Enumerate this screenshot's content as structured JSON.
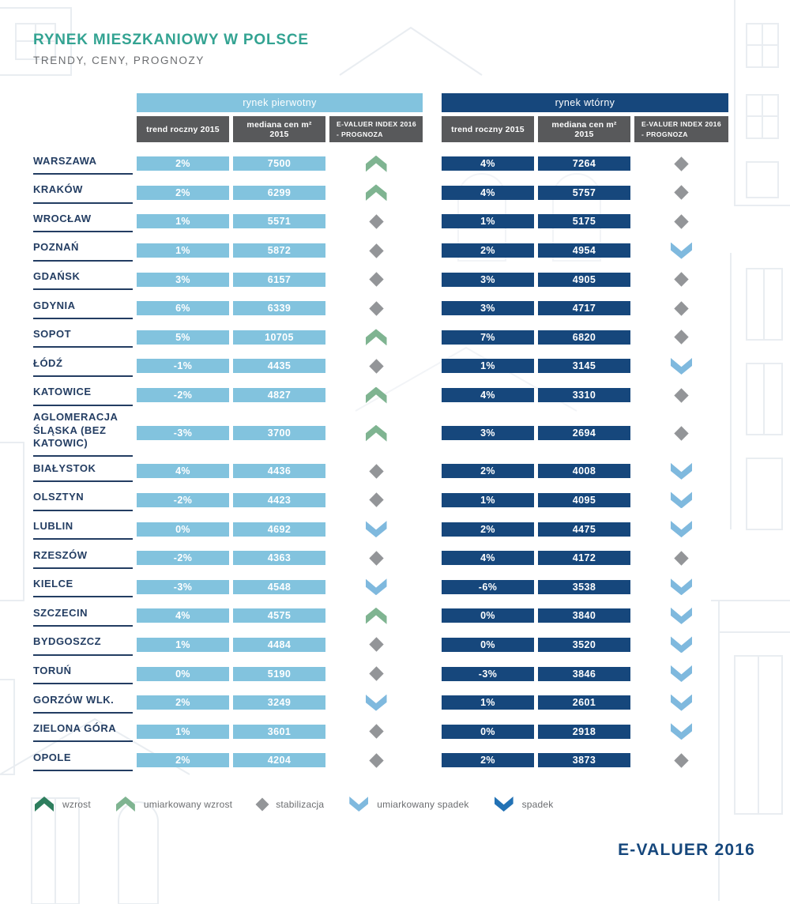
{
  "header": {
    "title": "RYNEK MIESZKANIOWY W POLSCE",
    "subtitle": "TRENDY, CENY, PROGNOZY"
  },
  "chart_data": {
    "type": "table",
    "title": "RYNEK MIESZKANIOWY W POLSCE",
    "subtitle": "TRENDY, CENY, PROGNOZY",
    "groups": [
      {
        "label": "rynek pierwotny"
      },
      {
        "label": "rynek wtórny"
      }
    ],
    "columns": [
      {
        "line1": "trend roczny 2015"
      },
      {
        "line1": "mediana cen m² 2015"
      },
      {
        "line1": "E-VALUER INDEX 2016",
        "line2": "- PROGNOZA"
      }
    ],
    "rows": [
      {
        "city": "WARSZAWA",
        "p_trend": "2%",
        "p_median": "7500",
        "p_icon": "moderate-up",
        "s_trend": "4%",
        "s_median": "7264",
        "s_icon": "stable"
      },
      {
        "city": "KRAKÓW",
        "p_trend": "2%",
        "p_median": "6299",
        "p_icon": "moderate-up",
        "s_trend": "4%",
        "s_median": "5757",
        "s_icon": "stable"
      },
      {
        "city": "WROCŁAW",
        "p_trend": "1%",
        "p_median": "5571",
        "p_icon": "stable",
        "s_trend": "1%",
        "s_median": "5175",
        "s_icon": "stable"
      },
      {
        "city": "POZNAŃ",
        "p_trend": "1%",
        "p_median": "5872",
        "p_icon": "stable",
        "s_trend": "2%",
        "s_median": "4954",
        "s_icon": "moderate-down"
      },
      {
        "city": "GDAŃSK",
        "p_trend": "3%",
        "p_median": "6157",
        "p_icon": "stable",
        "s_trend": "3%",
        "s_median": "4905",
        "s_icon": "stable"
      },
      {
        "city": "GDYNIA",
        "p_trend": "6%",
        "p_median": "6339",
        "p_icon": "stable",
        "s_trend": "3%",
        "s_median": "4717",
        "s_icon": "stable"
      },
      {
        "city": "SOPOT",
        "p_trend": "5%",
        "p_median": "10705",
        "p_icon": "moderate-up",
        "s_trend": "7%",
        "s_median": "6820",
        "s_icon": "stable"
      },
      {
        "city": "ŁÓDŹ",
        "p_trend": "-1%",
        "p_median": "4435",
        "p_icon": "stable",
        "s_trend": "1%",
        "s_median": "3145",
        "s_icon": "moderate-down"
      },
      {
        "city": "KATOWICE",
        "p_trend": "-2%",
        "p_median": "4827",
        "p_icon": "moderate-up",
        "s_trend": "4%",
        "s_median": "3310",
        "s_icon": "stable"
      },
      {
        "city": "AGLOMERACJA ŚLĄSKA (BEZ KATOWIC)",
        "p_trend": "-3%",
        "p_median": "3700",
        "p_icon": "moderate-up",
        "s_trend": "3%",
        "s_median": "2694",
        "s_icon": "stable"
      },
      {
        "city": "BIAŁYSTOK",
        "p_trend": "4%",
        "p_median": "4436",
        "p_icon": "stable",
        "s_trend": "2%",
        "s_median": "4008",
        "s_icon": "moderate-down"
      },
      {
        "city": "OLSZTYN",
        "p_trend": "-2%",
        "p_median": "4423",
        "p_icon": "stable",
        "s_trend": "1%",
        "s_median": "4095",
        "s_icon": "moderate-down"
      },
      {
        "city": "LUBLIN",
        "p_trend": "0%",
        "p_median": "4692",
        "p_icon": "moderate-down",
        "s_trend": "2%",
        "s_median": "4475",
        "s_icon": "moderate-down"
      },
      {
        "city": "RZESZÓW",
        "p_trend": "-2%",
        "p_median": "4363",
        "p_icon": "stable",
        "s_trend": "4%",
        "s_median": "4172",
        "s_icon": "stable"
      },
      {
        "city": "KIELCE",
        "p_trend": "-3%",
        "p_median": "4548",
        "p_icon": "moderate-down",
        "s_trend": "-6%",
        "s_median": "3538",
        "s_icon": "moderate-down"
      },
      {
        "city": "SZCZECIN",
        "p_trend": "4%",
        "p_median": "4575",
        "p_icon": "moderate-up",
        "s_trend": "0%",
        "s_median": "3840",
        "s_icon": "moderate-down"
      },
      {
        "city": "BYDGOSZCZ",
        "p_trend": "1%",
        "p_median": "4484",
        "p_icon": "stable",
        "s_trend": "0%",
        "s_median": "3520",
        "s_icon": "moderate-down"
      },
      {
        "city": "TORUŃ",
        "p_trend": "0%",
        "p_median": "5190",
        "p_icon": "stable",
        "s_trend": "-3%",
        "s_median": "3846",
        "s_icon": "moderate-down"
      },
      {
        "city": "GORZÓW WLK.",
        "p_trend": "2%",
        "p_median": "3249",
        "p_icon": "moderate-down",
        "s_trend": "1%",
        "s_median": "2601",
        "s_icon": "moderate-down"
      },
      {
        "city": "ZIELONA GÓRA",
        "p_trend": "1%",
        "p_median": "3601",
        "p_icon": "stable",
        "s_trend": "0%",
        "s_median": "2918",
        "s_icon": "moderate-down"
      },
      {
        "city": "OPOLE",
        "p_trend": "2%",
        "p_median": "4204",
        "p_icon": "stable",
        "s_trend": "2%",
        "s_median": "3873",
        "s_icon": "stable"
      }
    ]
  },
  "legend": [
    {
      "icon": "up",
      "label": "wzrost"
    },
    {
      "icon": "moderate-up",
      "label": "umiarkowany wzrost"
    },
    {
      "icon": "stable",
      "label": "stabilizacja"
    },
    {
      "icon": "moderate-down",
      "label": "umiarkowany spadek"
    },
    {
      "icon": "down",
      "label": "spadek"
    }
  ],
  "footer": {
    "brand": "E-VALUER 2016"
  },
  "colors": {
    "accent_teal": "#33a392",
    "primary_light_blue": "#82c3de",
    "secondary_navy": "#16477c",
    "header_gray": "#58595b",
    "up_green": "#2e7e5e",
    "moderate_up_green": "#7fb491",
    "stable_gray": "#939598",
    "moderate_down_blue": "#7fb9de",
    "down_blue": "#2272b5"
  }
}
